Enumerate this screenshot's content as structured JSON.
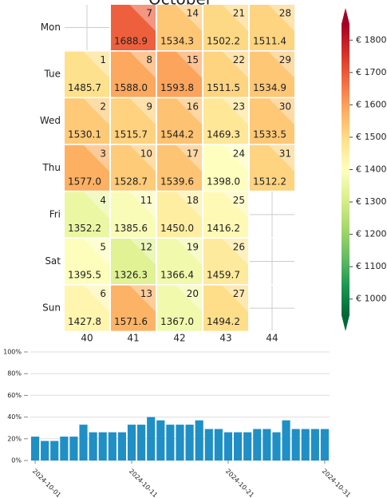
{
  "chart_data": [
    {
      "type": "calendar_heatmap",
      "title": "October",
      "weekdays": [
        "Mon",
        "Tue",
        "Wed",
        "Thu",
        "Fri",
        "Sat",
        "Sun"
      ],
      "weeks": [
        40,
        41,
        42,
        43,
        44
      ],
      "days": [
        1,
        2,
        3,
        4,
        5,
        6,
        7,
        8,
        9,
        10,
        11,
        12,
        13,
        14,
        15,
        16,
        17,
        18,
        19,
        20,
        21,
        22,
        23,
        24,
        25,
        26,
        27,
        28,
        29,
        30,
        31
      ],
      "values": [
        1485.7,
        1530.1,
        1577.0,
        1352.2,
        1395.5,
        1427.8,
        1688.9,
        1588.0,
        1515.7,
        1528.7,
        1385.6,
        1326.3,
        1571.6,
        1534.3,
        1593.8,
        1544.2,
        1539.6,
        1450.0,
        1366.4,
        1367.0,
        1502.2,
        1511.5,
        1469.3,
        1398.0,
        1416.2,
        1459.7,
        1494.2,
        1511.4,
        1534.9,
        1533.5,
        1512.2
      ],
      "value_labels": [
        "1485.7",
        "1530.1",
        "1577.0",
        "1352.2",
        "1395.5",
        "1427.8",
        "1688.9",
        "1588.0",
        "1515.7",
        "1528.7",
        "1385.6",
        "1326.3",
        "1571.6",
        "1534.3",
        "1593.8",
        "1544.2",
        "1539.6",
        "1450.0",
        "1366.4",
        "1367.0",
        "1502.2",
        "1511.5",
        "1469.3",
        "1398.0",
        "1416.2",
        "1459.7",
        "1494.2",
        "1511.4",
        "1534.9",
        "1533.5",
        "1512.2"
      ],
      "colors": [
        "#006837",
        "#1a9850",
        "#66bd63",
        "#a6d96a",
        "#d9ef8b",
        "#ffffbf",
        "#fee08b",
        "#fdae61",
        "#f46d43",
        "#d73027",
        "#a50026"
      ],
      "clim": [
        950,
        1850
      ],
      "cticks": [
        {
          "value": 1000,
          "label": "€ 1000"
        },
        {
          "value": 1100,
          "label": "€ 1100"
        },
        {
          "value": 1200,
          "label": "€ 1200"
        },
        {
          "value": 1300,
          "label": "€ 1300"
        },
        {
          "value": 1400,
          "label": "€ 1400"
        },
        {
          "value": 1500,
          "label": "€ 1500"
        },
        {
          "value": 1600,
          "label": "€ 1600"
        },
        {
          "value": 1700,
          "label": "€ 1700"
        },
        {
          "value": 1800,
          "label": "€ 1800"
        }
      ]
    },
    {
      "type": "bar",
      "color": "#1f8fc6",
      "categories": [
        "2024-10-01",
        null,
        null,
        null,
        null,
        null,
        null,
        null,
        null,
        null,
        "2024-10-11",
        null,
        null,
        null,
        null,
        null,
        null,
        null,
        null,
        null,
        "2024-10-21",
        null,
        null,
        null,
        null,
        null,
        null,
        null,
        null,
        null,
        "2024-10-31"
      ],
      "values": [
        22,
        18,
        18,
        22,
        22,
        33,
        26,
        26,
        26,
        26,
        33,
        33,
        40,
        37,
        33,
        33,
        33,
        37,
        29,
        29,
        26,
        26,
        26,
        29,
        29,
        26,
        37,
        29,
        29,
        29,
        29
      ],
      "ylim": [
        0,
        100
      ],
      "yticks": [
        {
          "value": 0,
          "label": "0%"
        },
        {
          "value": 20,
          "label": "20%"
        },
        {
          "value": 40,
          "label": "40%"
        },
        {
          "value": 60,
          "label": "60%"
        },
        {
          "value": 80,
          "label": "80%"
        },
        {
          "value": 100,
          "label": "100%"
        }
      ],
      "grid": true
    }
  ]
}
